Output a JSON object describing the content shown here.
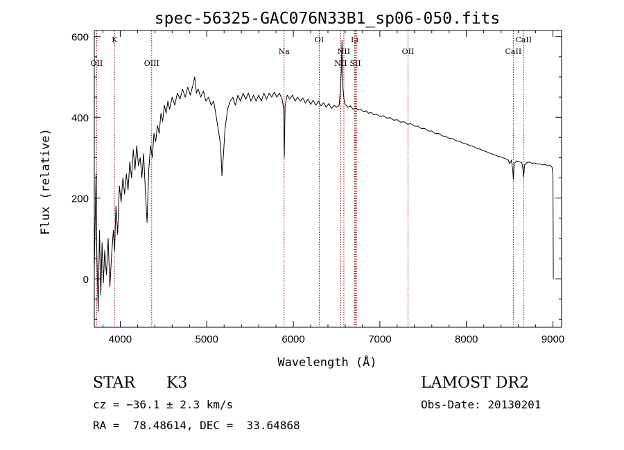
{
  "chart_data": {
    "type": "line",
    "title": "spec-56325-GAC076N33B1_sp06-050.fits",
    "xlabel": "Wavelength (Å)",
    "ylabel": "Flux (relative)",
    "xlim": [
      3700,
      9100
    ],
    "ylim": [
      -120,
      615
    ],
    "x_ticks": [
      4000,
      5000,
      6000,
      7000,
      8000,
      9000
    ],
    "y_ticks": [
      0,
      200,
      400,
      600
    ],
    "grid": false,
    "line_color": "#000000",
    "marker_color": "#8b0000",
    "line_markers": [
      {
        "label": "OII",
        "wavelength": 3727,
        "row": "lower"
      },
      {
        "label": "K",
        "wavelength": 3934,
        "row": "upper"
      },
      {
        "label": "OIII",
        "wavelength": 4363,
        "row": "lower"
      },
      {
        "label": "Na",
        "wavelength": 5893,
        "row": "mid"
      },
      {
        "label": "OI",
        "wavelength": 6300,
        "row": "upper"
      },
      {
        "label": "NII",
        "wavelength": 6548,
        "row": "lowest"
      },
      {
        "label": "NII",
        "wavelength": 6584,
        "row": "mid"
      },
      {
        "label": "Li",
        "wavelength": 6708,
        "row": "upper"
      },
      {
        "label": "SII",
        "wavelength": 6717,
        "row": "lowest"
      },
      {
        "label": "SII",
        "wavelength": 6731,
        "row": "none"
      },
      {
        "label": "OII",
        "wavelength": 7325,
        "row": "mid"
      },
      {
        "label": "CaII",
        "wavelength": 8542,
        "row": "mid"
      },
      {
        "label": "CaII",
        "wavelength": 8662,
        "row": "upper"
      }
    ],
    "spectrum": [
      [
        3700,
        20
      ],
      [
        3720,
        260
      ],
      [
        3730,
        60
      ],
      [
        3745,
        -80
      ],
      [
        3760,
        120
      ],
      [
        3775,
        -40
      ],
      [
        3790,
        90
      ],
      [
        3805,
        -10
      ],
      [
        3820,
        70
      ],
      [
        3840,
        10
      ],
      [
        3860,
        100
      ],
      [
        3880,
        -20
      ],
      [
        3900,
        60
      ],
      [
        3920,
        120
      ],
      [
        3935,
        70
      ],
      [
        3950,
        180
      ],
      [
        3970,
        110
      ],
      [
        3990,
        230
      ],
      [
        4010,
        190
      ],
      [
        4030,
        250
      ],
      [
        4050,
        210
      ],
      [
        4070,
        260
      ],
      [
        4090,
        220
      ],
      [
        4110,
        290
      ],
      [
        4130,
        250
      ],
      [
        4150,
        320
      ],
      [
        4170,
        270
      ],
      [
        4190,
        330
      ],
      [
        4210,
        280
      ],
      [
        4230,
        300
      ],
      [
        4250,
        250
      ],
      [
        4270,
        310
      ],
      [
        4290,
        220
      ],
      [
        4310,
        140
      ],
      [
        4330,
        270
      ],
      [
        4350,
        330
      ],
      [
        4370,
        300
      ],
      [
        4390,
        360
      ],
      [
        4410,
        340
      ],
      [
        4430,
        380
      ],
      [
        4450,
        360
      ],
      [
        4470,
        410
      ],
      [
        4490,
        390
      ],
      [
        4510,
        430
      ],
      [
        4530,
        410
      ],
      [
        4550,
        440
      ],
      [
        4570,
        420
      ],
      [
        4600,
        450
      ],
      [
        4630,
        430
      ],
      [
        4660,
        460
      ],
      [
        4690,
        445
      ],
      [
        4720,
        470
      ],
      [
        4750,
        450
      ],
      [
        4780,
        475
      ],
      [
        4810,
        455
      ],
      [
        4840,
        480
      ],
      [
        4860,
        500
      ],
      [
        4880,
        460
      ],
      [
        4900,
        470
      ],
      [
        4930,
        450
      ],
      [
        4960,
        465
      ],
      [
        4990,
        440
      ],
      [
        5020,
        450
      ],
      [
        5050,
        430
      ],
      [
        5080,
        440
      ],
      [
        5110,
        400
      ],
      [
        5140,
        360
      ],
      [
        5160,
        330
      ],
      [
        5175,
        255
      ],
      [
        5190,
        300
      ],
      [
        5210,
        370
      ],
      [
        5240,
        420
      ],
      [
        5270,
        440
      ],
      [
        5300,
        450
      ],
      [
        5330,
        430
      ],
      [
        5360,
        455
      ],
      [
        5390,
        440
      ],
      [
        5420,
        460
      ],
      [
        5450,
        445
      ],
      [
        5480,
        460
      ],
      [
        5510,
        440
      ],
      [
        5540,
        455
      ],
      [
        5570,
        440
      ],
      [
        5600,
        455
      ],
      [
        5630,
        440
      ],
      [
        5660,
        460
      ],
      [
        5690,
        445
      ],
      [
        5720,
        460
      ],
      [
        5750,
        450
      ],
      [
        5780,
        462
      ],
      [
        5810,
        450
      ],
      [
        5840,
        460
      ],
      [
        5870,
        445
      ],
      [
        5890,
        420
      ],
      [
        5895,
        300
      ],
      [
        5905,
        430
      ],
      [
        5930,
        455
      ],
      [
        5960,
        445
      ],
      [
        5990,
        455
      ],
      [
        6020,
        440
      ],
      [
        6050,
        450
      ],
      [
        6080,
        440
      ],
      [
        6110,
        448
      ],
      [
        6140,
        435
      ],
      [
        6170,
        445
      ],
      [
        6200,
        432
      ],
      [
        6230,
        442
      ],
      [
        6260,
        430
      ],
      [
        6290,
        440
      ],
      [
        6320,
        428
      ],
      [
        6350,
        436
      ],
      [
        6380,
        425
      ],
      [
        6410,
        434
      ],
      [
        6440,
        422
      ],
      [
        6470,
        430
      ],
      [
        6500,
        425
      ],
      [
        6530,
        430
      ],
      [
        6545,
        470
      ],
      [
        6555,
        520
      ],
      [
        6562,
        590
      ],
      [
        6570,
        480
      ],
      [
        6585,
        445
      ],
      [
        6600,
        432
      ],
      [
        6630,
        425
      ],
      [
        6660,
        428
      ],
      [
        6690,
        420
      ],
      [
        6720,
        423
      ],
      [
        6750,
        418
      ],
      [
        6780,
        420
      ],
      [
        6810,
        414
      ],
      [
        6840,
        416
      ],
      [
        6870,
        410
      ],
      [
        6900,
        412
      ],
      [
        6930,
        406
      ],
      [
        6960,
        408
      ],
      [
        7000,
        402
      ],
      [
        7040,
        404
      ],
      [
        7080,
        398
      ],
      [
        7120,
        399
      ],
      [
        7160,
        393
      ],
      [
        7200,
        394
      ],
      [
        7240,
        388
      ],
      [
        7280,
        389
      ],
      [
        7320,
        383
      ],
      [
        7360,
        384
      ],
      [
        7400,
        378
      ],
      [
        7440,
        378
      ],
      [
        7480,
        372
      ],
      [
        7520,
        372
      ],
      [
        7560,
        366
      ],
      [
        7600,
        366
      ],
      [
        7640,
        360
      ],
      [
        7680,
        360
      ],
      [
        7720,
        354
      ],
      [
        7760,
        353
      ],
      [
        7800,
        348
      ],
      [
        7840,
        347
      ],
      [
        7880,
        342
      ],
      [
        7920,
        341
      ],
      [
        7960,
        336
      ],
      [
        8000,
        334
      ],
      [
        8040,
        330
      ],
      [
        8080,
        328
      ],
      [
        8120,
        323
      ],
      [
        8160,
        321
      ],
      [
        8200,
        317
      ],
      [
        8240,
        314
      ],
      [
        8280,
        310
      ],
      [
        8320,
        308
      ],
      [
        8360,
        304
      ],
      [
        8400,
        302
      ],
      [
        8440,
        298
      ],
      [
        8480,
        296
      ],
      [
        8500,
        285
      ],
      [
        8520,
        294
      ],
      [
        8535,
        270
      ],
      [
        8542,
        248
      ],
      [
        8552,
        285
      ],
      [
        8580,
        292
      ],
      [
        8610,
        290
      ],
      [
        8640,
        288
      ],
      [
        8655,
        268
      ],
      [
        8662,
        252
      ],
      [
        8672,
        282
      ],
      [
        8700,
        288
      ],
      [
        8730,
        289
      ],
      [
        8760,
        286
      ],
      [
        8790,
        287
      ],
      [
        8820,
        284
      ],
      [
        8850,
        285
      ],
      [
        8880,
        282
      ],
      [
        8910,
        283
      ],
      [
        8940,
        280
      ],
      [
        8970,
        281
      ],
      [
        8990,
        276
      ],
      [
        9000,
        260
      ],
      [
        9005,
        0
      ]
    ]
  },
  "info": {
    "object_class": "STAR",
    "subclass": "K3",
    "redshift_text": "cz = −36.1 ± 2.3 km/s",
    "coordinates_text": "RA =  78.48614, DEC =  33.64868",
    "survey": "LAMOST DR2",
    "obs_date": "Obs-Date: 20130201"
  }
}
